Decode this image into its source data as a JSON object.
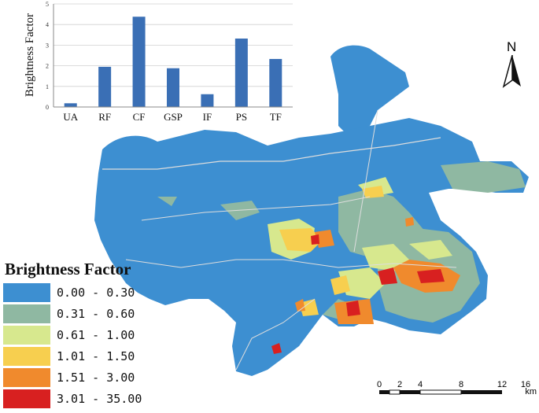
{
  "chart_data": {
    "type": "bar",
    "categories": [
      "UA",
      "RF",
      "CF",
      "GSP",
      "IF",
      "PS",
      "TF"
    ],
    "values": [
      0.18,
      1.95,
      4.38,
      1.88,
      0.62,
      3.32,
      2.33
    ],
    "ylabel": "Brightness Factor",
    "yticks": [
      "0",
      "1",
      "2",
      "3",
      "4",
      "5"
    ],
    "ylim": [
      0,
      5
    ],
    "bar_color": "#3a6fb5",
    "grid": true
  },
  "legend": {
    "title": "Brightness Factor",
    "items": [
      {
        "label": "0.00 - 0.30",
        "color": "#3d8fd1"
      },
      {
        "label": "0.31 - 0.60",
        "color": "#8fb8a2"
      },
      {
        "label": "0.61 - 1.00",
        "color": "#d7e88e"
      },
      {
        "label": "1.01 - 1.50",
        "color": "#f7cf4f"
      },
      {
        "label": "1.51 - 3.00",
        "color": "#f08a2d"
      },
      {
        "label": "3.01 - 35.00",
        "color": "#d82020"
      }
    ]
  },
  "north_arrow": {
    "label": "N"
  },
  "scale_bar": {
    "ticks": [
      "0",
      "2",
      "4",
      "8",
      "12",
      "16"
    ],
    "unit": "km"
  }
}
